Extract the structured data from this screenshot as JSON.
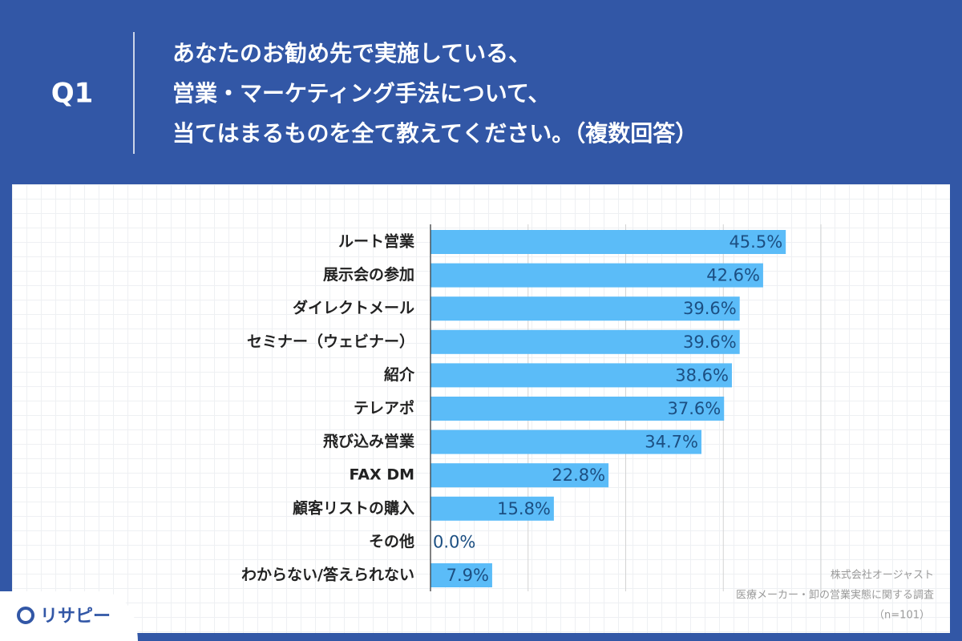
{
  "header": {
    "label": "Q1",
    "title_lines": [
      "あなたのお勧め先で実施している、",
      "営業・マーケティング手法について、",
      "当てはまるものを全て教えてください。（複数回答）"
    ]
  },
  "chart_data": {
    "type": "barh",
    "categories": [
      "ルート営業",
      "展示会の参加",
      "ダイレクトメール",
      "セミナー（ウェビナー）",
      "紹介",
      "テレアポ",
      "飛び込み営業",
      "FAX DM",
      "顧客リストの購入",
      "その他",
      "わからない/答えられない"
    ],
    "values": [
      45.5,
      42.6,
      39.6,
      39.6,
      38.6,
      37.6,
      34.7,
      22.8,
      15.8,
      0.0,
      7.9
    ],
    "value_labels": [
      "45.5%",
      "42.6%",
      "39.6%",
      "39.6%",
      "38.6%",
      "37.6%",
      "34.7%",
      "22.8%",
      "15.8%",
      "0.0%",
      "7.9%"
    ],
    "color": "#5bbcf8",
    "xlim": [
      0,
      50
    ],
    "xticks": [
      0,
      12.5,
      25,
      37.5,
      50
    ],
    "grid": true
  },
  "footer": {
    "source_lines": [
      "株式会社オージャスト",
      "医療メーカー・卸の営業実態に関する調査",
      "（n=101）"
    ]
  },
  "logo": "リサピー"
}
